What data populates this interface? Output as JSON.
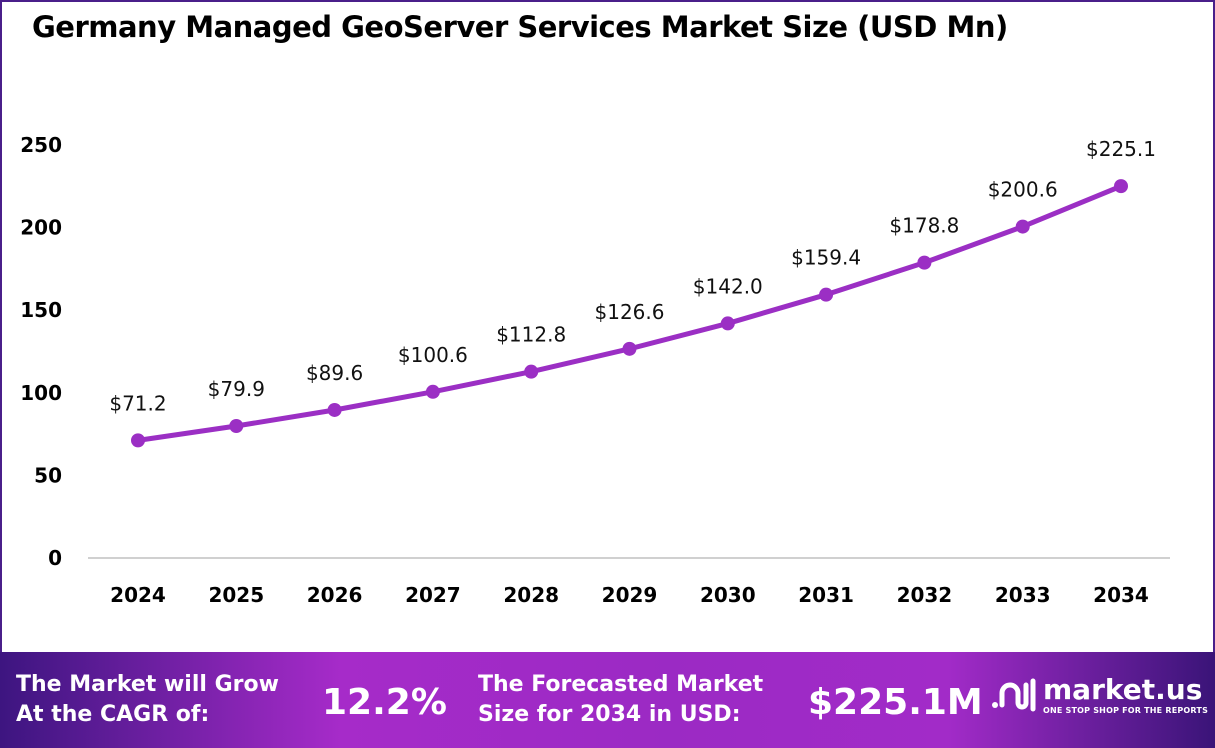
{
  "chart_data": {
    "type": "line",
    "title": "Germany Managed GeoServer Services Market Size (USD Mn)",
    "categories": [
      "2024",
      "2025",
      "2026",
      "2027",
      "2028",
      "2029",
      "2030",
      "2031",
      "2032",
      "2033",
      "2034"
    ],
    "values": [
      71.2,
      79.9,
      89.6,
      100.6,
      112.8,
      126.6,
      142.0,
      159.4,
      178.8,
      200.6,
      225.1
    ],
    "data_labels": [
      "$71.2",
      "$79.9",
      "$89.6",
      "$100.6",
      "$112.8",
      "$126.6",
      "$142.0",
      "$159.4",
      "$178.8",
      "$200.6",
      "$225.1"
    ],
    "yticks": [
      "0",
      "50",
      "100",
      "150",
      "200",
      "250"
    ],
    "ylim": [
      0,
      250
    ],
    "grid": false,
    "line_color": "#9b2fc4"
  },
  "footer": {
    "cagr_label_1": "The Market will Grow",
    "cagr_label_2": "At the CAGR of:",
    "cagr_value": "12.2%",
    "forecast_label_1": "The Forecasted Market",
    "forecast_label_2": "Size for 2034 in USD:",
    "forecast_value": "$225.1M",
    "logo_name": "market.us",
    "logo_tagline": "ONE STOP SHOP FOR THE REPORTS"
  }
}
